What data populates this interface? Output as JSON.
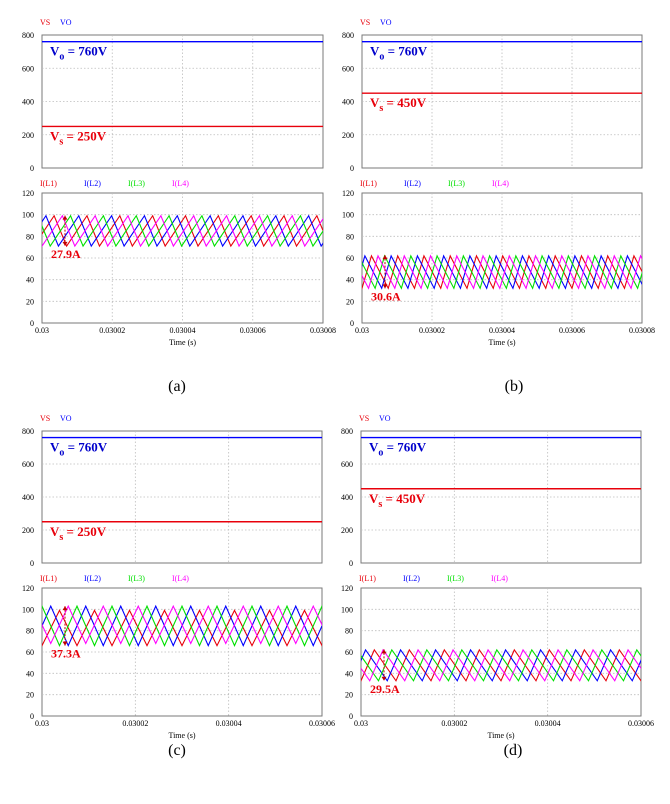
{
  "panels": [
    {
      "label": "(a)",
      "voltage": {
        "legend": [
          {
            "name": "VS",
            "color": "#e8000b"
          },
          {
            "name": "VO",
            "color": "#0000ff"
          }
        ],
        "y_ticks": [
          0,
          200,
          400,
          600,
          800
        ],
        "ylim": [
          0,
          800
        ],
        "vo": 760,
        "vs": 250,
        "vo_text": [
          "V",
          "o",
          " = 760V"
        ],
        "vs_text": [
          "V",
          "s",
          " = 250V"
        ]
      },
      "current": {
        "legend": [
          {
            "name": "I(L1)",
            "color": "#e8000b"
          },
          {
            "name": "I(L2)",
            "color": "#0000ff"
          },
          {
            "name": "I(L3)",
            "color": "#00e000"
          },
          {
            "name": "I(L4)",
            "color": "#ff00ff"
          }
        ],
        "y_ticks": [
          0,
          20,
          40,
          60,
          80,
          100,
          120
        ],
        "ylim": [
          0,
          120
        ],
        "x_ticks": [
          "0.03",
          "0.03002",
          "0.03004",
          "0.03006",
          "0.03008"
        ],
        "xlim": [
          0.03,
          0.03008
        ],
        "xlabel": "Time (s)",
        "ripple_text": "27.9A",
        "ripple_range": [
          71.2,
          99.1
        ],
        "waves": [
          {
            "name": "I(L1)",
            "color": "#e8000b",
            "min": 71,
            "max": 99,
            "period": 9.35e-06,
            "duty": 0.62,
            "phase": 0.25
          },
          {
            "name": "I(L2)",
            "color": "#0000ff",
            "min": 71,
            "max": 99,
            "period": 9.35e-06,
            "duty": 0.62,
            "phase": 0.5
          },
          {
            "name": "I(L3)",
            "color": "#00e000",
            "min": 71,
            "max": 99,
            "period": 9.35e-06,
            "duty": 0.62,
            "phase": 0.75
          },
          {
            "name": "I(L4)",
            "color": "#ff00ff",
            "min": 71,
            "max": 99,
            "period": 9.35e-06,
            "duty": 0.62,
            "phase": 0.0
          }
        ]
      }
    },
    {
      "label": "(b)",
      "voltage": {
        "legend": [
          {
            "name": "VS",
            "color": "#e8000b"
          },
          {
            "name": "VO",
            "color": "#0000ff"
          }
        ],
        "y_ticks": [
          0,
          200,
          400,
          600,
          800
        ],
        "ylim": [
          0,
          800
        ],
        "vo": 760,
        "vs": 450,
        "vo_text": [
          "V",
          "o",
          " = 760V"
        ],
        "vs_text": [
          "V",
          "s",
          " = 450V"
        ]
      },
      "current": {
        "legend": [
          {
            "name": "I(L1)",
            "color": "#e8000b"
          },
          {
            "name": "I(L2)",
            "color": "#0000ff"
          },
          {
            "name": "I(L3)",
            "color": "#00e000"
          },
          {
            "name": "I(L4)",
            "color": "#ff00ff"
          }
        ],
        "y_ticks": [
          0,
          20,
          40,
          60,
          80,
          100,
          120
        ],
        "ylim": [
          0,
          120
        ],
        "x_ticks": [
          "0.03",
          "0.03002",
          "0.03004",
          "0.03006",
          "0.03008"
        ],
        "xlim": [
          0.03,
          0.03008
        ],
        "xlabel": "Time (s)",
        "ripple_text": "30.6A",
        "ripple_range": [
          32,
          62.6
        ],
        "waves": [
          {
            "name": "I(L1)",
            "color": "#e8000b",
            "min": 32,
            "max": 62,
            "period": 7.5e-06,
            "duty": 0.36,
            "phase": 0.0
          },
          {
            "name": "I(L2)",
            "color": "#0000ff",
            "min": 32,
            "max": 62,
            "period": 7.5e-06,
            "duty": 0.36,
            "phase": 0.25
          },
          {
            "name": "I(L3)",
            "color": "#00e000",
            "min": 32,
            "max": 62,
            "period": 7.5e-06,
            "duty": 0.36,
            "phase": 0.5
          },
          {
            "name": "I(L4)",
            "color": "#ff00ff",
            "min": 32,
            "max": 62,
            "period": 7.5e-06,
            "duty": 0.36,
            "phase": 0.75
          }
        ]
      }
    },
    {
      "label": "(c)",
      "voltage": {
        "legend": [
          {
            "name": "VS",
            "color": "#e8000b"
          },
          {
            "name": "VO",
            "color": "#0000ff"
          }
        ],
        "y_ticks": [
          0,
          200,
          400,
          600,
          800
        ],
        "ylim": [
          0,
          800
        ],
        "vo": 760,
        "vs": 250,
        "vo_text": [
          "V",
          "o",
          " = 760V"
        ],
        "vs_text": [
          "V",
          "s",
          " = 250V"
        ]
      },
      "current": {
        "legend": [
          {
            "name": "I(L1)",
            "color": "#e8000b"
          },
          {
            "name": "I(L2)",
            "color": "#0000ff"
          },
          {
            "name": "I(L3)",
            "color": "#00e000"
          },
          {
            "name": "I(L4)",
            "color": "#ff00ff"
          }
        ],
        "y_ticks": [
          0,
          20,
          40,
          60,
          80,
          100,
          120
        ],
        "ylim": [
          0,
          120
        ],
        "x_ticks": [
          "0.03",
          "0.03002",
          "0.03004",
          "0.03006"
        ],
        "xlim": [
          0.03,
          0.03006
        ],
        "xlabel": "Time (s)",
        "ripple_text": "37.3A",
        "ripple_range": [
          66,
          103
        ],
        "waves": [
          {
            "name": "I(L1)",
            "color": "#e8000b",
            "min": 66,
            "max": 99,
            "period": 7.5e-06,
            "duty": 0.5,
            "phase": 0.0
          },
          {
            "name": "I(L2)",
            "color": "#0000ff",
            "min": 66,
            "max": 103,
            "period": 7.5e-06,
            "duty": 0.5,
            "phase": 0.25
          },
          {
            "name": "I(L3)",
            "color": "#00e000",
            "min": 66,
            "max": 103,
            "period": 7.5e-06,
            "duty": 0.5,
            "phase": 0.5
          },
          {
            "name": "I(L4)",
            "color": "#ff00ff",
            "min": 68,
            "max": 103,
            "period": 7.5e-06,
            "duty": 0.5,
            "phase": 0.75
          }
        ]
      }
    },
    {
      "label": "(d)",
      "voltage": {
        "legend": [
          {
            "name": "VS",
            "color": "#e8000b"
          },
          {
            "name": "VO",
            "color": "#0000ff"
          }
        ],
        "y_ticks": [
          0,
          200,
          400,
          600,
          800
        ],
        "ylim": [
          0,
          800
        ],
        "vo": 760,
        "vs": 450,
        "vo_text": [
          "V",
          "o",
          " = 760V"
        ],
        "vs_text": [
          "V",
          "s",
          " = 450V"
        ]
      },
      "current": {
        "legend": [
          {
            "name": "I(L1)",
            "color": "#e8000b"
          },
          {
            "name": "I(L2)",
            "color": "#0000ff"
          },
          {
            "name": "I(L3)",
            "color": "#00e000"
          },
          {
            "name": "I(L4)",
            "color": "#ff00ff"
          }
        ],
        "y_ticks": [
          0,
          20,
          40,
          60,
          80,
          100,
          120
        ],
        "ylim": [
          0,
          120
        ],
        "x_ticks": [
          "0.03",
          "0.03002",
          "0.03004",
          "0.03006"
        ],
        "xlim": [
          0.03,
          0.03006
        ],
        "xlabel": "Time (s)",
        "ripple_text": "29.5A",
        "ripple_range": [
          33,
          62.5
        ],
        "waves": [
          {
            "name": "I(L1)",
            "color": "#e8000b",
            "min": 33,
            "max": 62,
            "period": 7.5e-06,
            "duty": 0.38,
            "phase": 0.0
          },
          {
            "name": "I(L2)",
            "color": "#0000ff",
            "min": 33,
            "max": 62,
            "period": 7.5e-06,
            "duty": 0.38,
            "phase": 0.25
          },
          {
            "name": "I(L3)",
            "color": "#00e000",
            "min": 33,
            "max": 62,
            "period": 7.5e-06,
            "duty": 0.38,
            "phase": 0.5
          },
          {
            "name": "I(L4)",
            "color": "#ff00ff",
            "min": 33,
            "max": 62,
            "period": 7.5e-06,
            "duty": 0.38,
            "phase": 0.75
          }
        ]
      }
    }
  ],
  "chart_data": [
    {
      "type": "line",
      "panel": "(a)",
      "plot": "voltage",
      "series": [
        {
          "name": "VS",
          "values": [
            250,
            250
          ]
        },
        {
          "name": "VO",
          "values": [
            760,
            760
          ]
        }
      ],
      "x": [
        0.03,
        0.03008
      ],
      "ylim": [
        0,
        800
      ]
    },
    {
      "type": "line",
      "panel": "(a)",
      "plot": "current",
      "series": [
        {
          "name": "I(L1)",
          "range": [
            71,
            99
          ]
        },
        {
          "name": "I(L2)",
          "range": [
            71,
            99
          ]
        },
        {
          "name": "I(L3)",
          "range": [
            71,
            99
          ]
        },
        {
          "name": "I(L4)",
          "range": [
            71,
            99
          ]
        }
      ],
      "xlim": [
        0.03,
        0.03008
      ],
      "ylim": [
        0,
        120
      ],
      "xlabel": "Time (s)",
      "annotation": "27.9A"
    },
    {
      "type": "line",
      "panel": "(b)",
      "plot": "voltage",
      "series": [
        {
          "name": "VS",
          "values": [
            450,
            450
          ]
        },
        {
          "name": "VO",
          "values": [
            760,
            760
          ]
        }
      ],
      "x": [
        0.03,
        0.03008
      ],
      "ylim": [
        0,
        800
      ]
    },
    {
      "type": "line",
      "panel": "(b)",
      "plot": "current",
      "series": [
        {
          "name": "I(L1)",
          "range": [
            32,
            62
          ]
        },
        {
          "name": "I(L2)",
          "range": [
            32,
            62
          ]
        },
        {
          "name": "I(L3)",
          "range": [
            32,
            62
          ]
        },
        {
          "name": "I(L4)",
          "range": [
            32,
            62
          ]
        }
      ],
      "xlim": [
        0.03,
        0.03008
      ],
      "ylim": [
        0,
        120
      ],
      "xlabel": "Time (s)",
      "annotation": "30.6A"
    },
    {
      "type": "line",
      "panel": "(c)",
      "plot": "voltage",
      "series": [
        {
          "name": "VS",
          "values": [
            250,
            250
          ]
        },
        {
          "name": "VO",
          "values": [
            760,
            760
          ]
        }
      ],
      "x": [
        0.03,
        0.03006
      ],
      "ylim": [
        0,
        800
      ]
    },
    {
      "type": "line",
      "panel": "(c)",
      "plot": "current",
      "series": [
        {
          "name": "I(L1)",
          "range": [
            66,
            99
          ]
        },
        {
          "name": "I(L2)",
          "range": [
            66,
            103
          ]
        },
        {
          "name": "I(L3)",
          "range": [
            66,
            103
          ]
        },
        {
          "name": "I(L4)",
          "range": [
            68,
            103
          ]
        }
      ],
      "xlim": [
        0.03,
        0.03006
      ],
      "ylim": [
        0,
        120
      ],
      "xlabel": "Time (s)",
      "annotation": "37.3A"
    },
    {
      "type": "line",
      "panel": "(d)",
      "plot": "voltage",
      "series": [
        {
          "name": "VS",
          "values": [
            450,
            450
          ]
        },
        {
          "name": "VO",
          "values": [
            760,
            760
          ]
        }
      ],
      "x": [
        0.03,
        0.03006
      ],
      "ylim": [
        0,
        800
      ]
    },
    {
      "type": "line",
      "panel": "(d)",
      "plot": "current",
      "series": [
        {
          "name": "I(L1)",
          "range": [
            33,
            62
          ]
        },
        {
          "name": "I(L2)",
          "range": [
            33,
            62
          ]
        },
        {
          "name": "I(L3)",
          "range": [
            33,
            62
          ]
        },
        {
          "name": "I(L4)",
          "range": [
            33,
            62
          ]
        }
      ],
      "xlim": [
        0.03,
        0.03006
      ],
      "ylim": [
        0,
        120
      ],
      "xlabel": "Time (s)",
      "annotation": "29.5A"
    }
  ]
}
